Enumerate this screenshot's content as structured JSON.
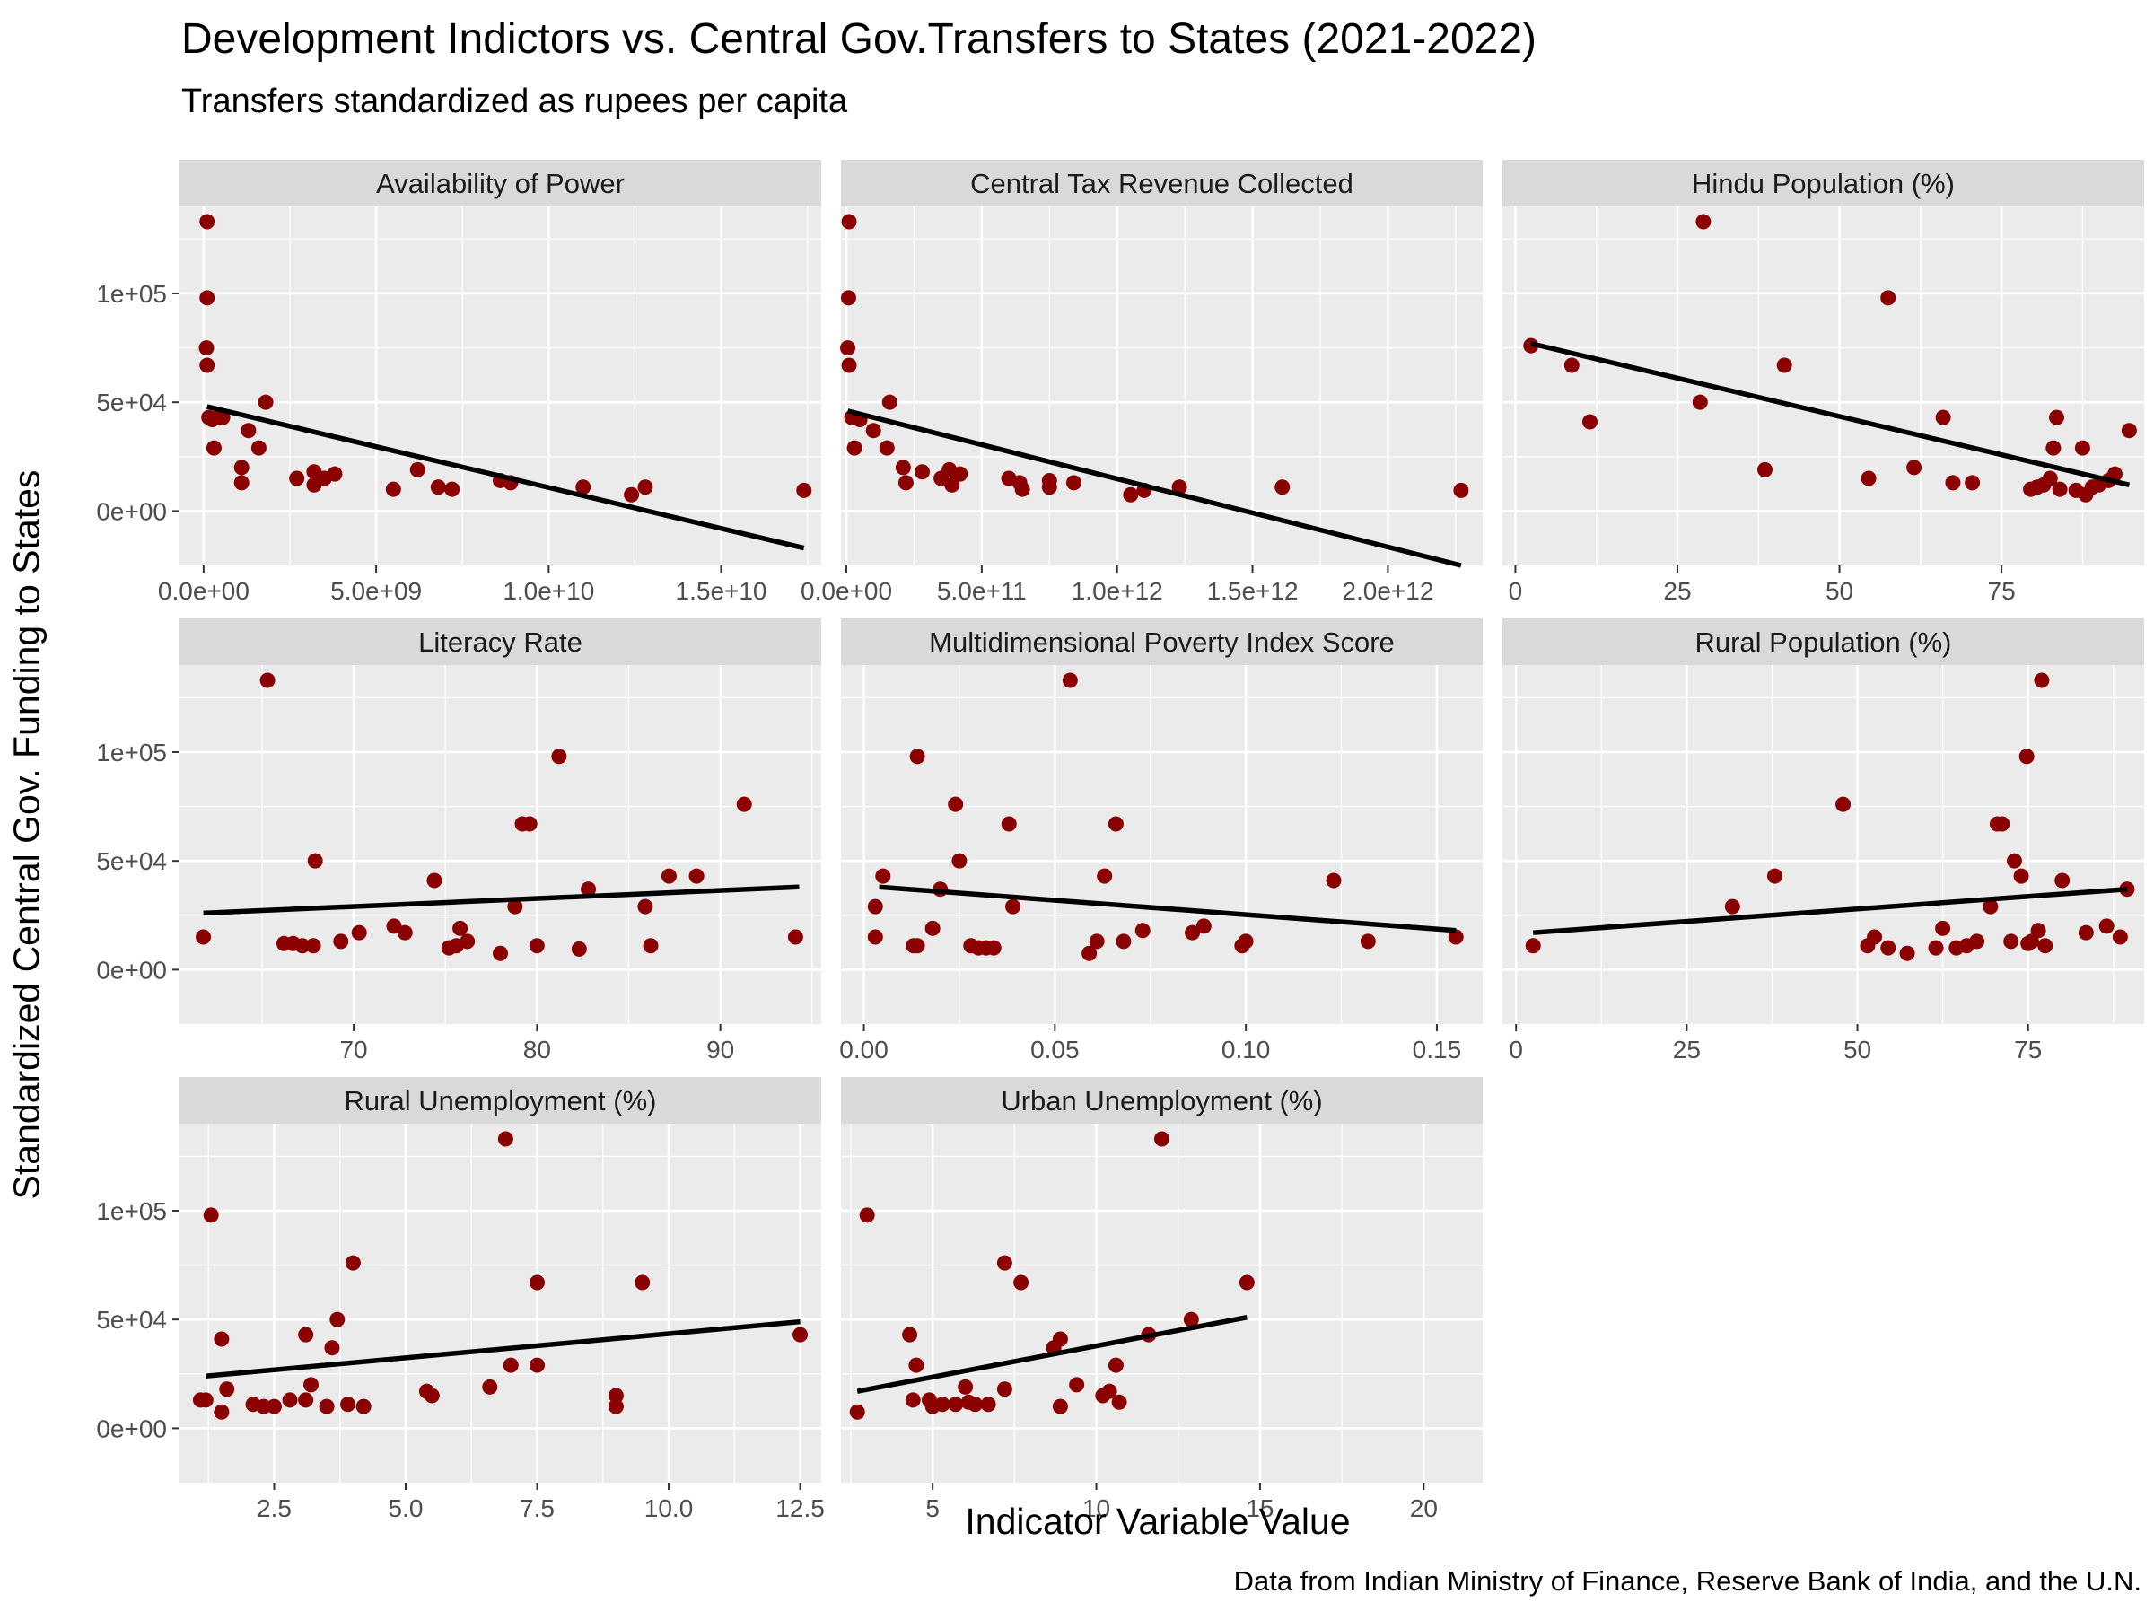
{
  "title": "Development Indictors vs. Central Gov.Transfers to States (2021-2022)",
  "subtitle": "Transfers standardized as rupees per capita",
  "xlabel": "Indicator Variable Value",
  "ylabel": "Standardized Central Gov. Funding to States",
  "caption": "Data from Indian Ministry of Finance, Reserve Bank of India, and the U.N.",
  "colors": {
    "point": "#8B0000",
    "fit_line": "#000000",
    "panel_bg": "#EBEBEB",
    "strip_bg": "#D9D9D9",
    "grid": "#FFFFFF",
    "axis_text": "#4D4D4D"
  },
  "chart_data": {
    "type": "scatter",
    "layout": "facet_wrap",
    "shared_y": true,
    "ylim": [
      -25000,
      140000
    ],
    "y_ticks": [
      0,
      50000,
      100000
    ],
    "y_tick_labels": [
      "0e+00",
      "5e+04",
      "1e+05"
    ],
    "grid": true,
    "panels": [
      {
        "name": "Availability of Power",
        "xlim": [
          -700000000,
          17900000000
        ],
        "x_ticks": [
          0,
          5000000000,
          10000000000,
          15000000000
        ],
        "x_tick_labels": [
          "0.0e+00",
          "5.0e+09",
          "1.0e+10",
          "1.5e+10"
        ],
        "fit": {
          "x": [
            100000000,
            17400000000
          ],
          "y": [
            48000,
            -17000
          ]
        },
        "points": [
          [
            100000000,
            133000
          ],
          [
            100000000,
            98000
          ],
          [
            80000000,
            75000
          ],
          [
            100000000,
            67000
          ],
          [
            150000000,
            43000
          ],
          [
            250000000,
            42000
          ],
          [
            400000000,
            43000
          ],
          [
            550000000,
            43000
          ],
          [
            300000000,
            29000
          ],
          [
            1800000000,
            50000
          ],
          [
            1300000000,
            37000
          ],
          [
            1600000000,
            29000
          ],
          [
            1100000000,
            20000
          ],
          [
            1100000000,
            13000
          ],
          [
            2700000000,
            15000
          ],
          [
            3200000000,
            18000
          ],
          [
            3200000000,
            12000
          ],
          [
            3500000000,
            15000
          ],
          [
            3800000000,
            17000
          ],
          [
            5500000000,
            10000
          ],
          [
            6200000000,
            19000
          ],
          [
            6800000000,
            11000
          ],
          [
            7200000000,
            10000
          ],
          [
            8600000000,
            14000
          ],
          [
            8900000000,
            13000
          ],
          [
            11000000000,
            11000
          ],
          [
            12400000000,
            7500
          ],
          [
            12800000000,
            11000
          ],
          [
            17400000000,
            9500
          ]
        ]
      },
      {
        "name": "Central Tax Revenue Collected",
        "xlim": [
          -20000000000,
          2350000000000
        ],
        "x_ticks": [
          0,
          500000000000,
          1000000000000,
          1500000000000,
          2000000000000
        ],
        "x_tick_labels": [
          "0.0e+00",
          "5.0e+11",
          "1.0e+12",
          "1.5e+12",
          "2.0e+12"
        ],
        "fit": {
          "x": [
            5000000000,
            2270000000000
          ],
          "y": [
            46000,
            -25000
          ]
        },
        "points": [
          [
            10000000000,
            133000
          ],
          [
            8000000000,
            98000
          ],
          [
            5000000000,
            75000
          ],
          [
            10000000000,
            67000
          ],
          [
            20000000000,
            43000
          ],
          [
            50000000000,
            42000
          ],
          [
            100000000000,
            37000
          ],
          [
            160000000000,
            50000
          ],
          [
            30000000000,
            29000
          ],
          [
            150000000000,
            29000
          ],
          [
            210000000000,
            20000
          ],
          [
            220000000000,
            13000
          ],
          [
            280000000000,
            18000
          ],
          [
            350000000000,
            15000
          ],
          [
            380000000000,
            19000
          ],
          [
            390000000000,
            12000
          ],
          [
            420000000000,
            17000
          ],
          [
            600000000000,
            15000
          ],
          [
            640000000000,
            13000
          ],
          [
            650000000000,
            10000
          ],
          [
            750000000000,
            11000
          ],
          [
            750000000000,
            14000
          ],
          [
            840000000000,
            13000
          ],
          [
            1050000000000,
            7500
          ],
          [
            1100000000000,
            9500
          ],
          [
            1230000000000,
            11000
          ],
          [
            1610000000000,
            11000
          ],
          [
            2270000000000,
            9500
          ]
        ]
      },
      {
        "name": "Hindu Population (%)",
        "xlim": [
          -2,
          97
        ],
        "x_ticks": [
          0,
          25,
          50,
          75
        ],
        "x_tick_labels": [
          "0",
          "25",
          "50",
          "75"
        ],
        "fit": {
          "x": [
            2.4,
            94.7
          ],
          "y": [
            77000,
            12000
          ]
        },
        "points": [
          [
            2.4,
            76000
          ],
          [
            8.7,
            67000
          ],
          [
            11.5,
            41000
          ],
          [
            28.5,
            50000
          ],
          [
            29,
            133000
          ],
          [
            38.5,
            19000
          ],
          [
            41.5,
            67000
          ],
          [
            54.5,
            15000
          ],
          [
            57.5,
            98000
          ],
          [
            61.5,
            20000
          ],
          [
            66,
            43000
          ],
          [
            67.5,
            13000
          ],
          [
            70.5,
            13000
          ],
          [
            79.5,
            10000
          ],
          [
            80.5,
            11000
          ],
          [
            81.5,
            12000
          ],
          [
            82.5,
            15000
          ],
          [
            83,
            29000
          ],
          [
            83.5,
            43000
          ],
          [
            84,
            10000
          ],
          [
            86.5,
            9500
          ],
          [
            87.5,
            29000
          ],
          [
            88,
            7500
          ],
          [
            89,
            11000
          ],
          [
            90,
            12000
          ],
          [
            91.5,
            14000
          ],
          [
            92.5,
            17000
          ],
          [
            94.7,
            37000
          ]
        ]
      },
      {
        "name": "Literacy Rate",
        "xlim": [
          60.5,
          95.5
        ],
        "x_ticks": [
          70,
          80,
          90
        ],
        "x_tick_labels": [
          "70",
          "80",
          "90"
        ],
        "fit": {
          "x": [
            61.8,
            94.3
          ],
          "y": [
            26000,
            38000
          ]
        },
        "points": [
          [
            61.8,
            15000
          ],
          [
            65.3,
            133000
          ],
          [
            66.2,
            12000
          ],
          [
            66.7,
            12000
          ],
          [
            67.2,
            11000
          ],
          [
            67.8,
            11000
          ],
          [
            67.9,
            50000
          ],
          [
            69.3,
            13000
          ],
          [
            70.3,
            17000
          ],
          [
            72.2,
            20000
          ],
          [
            72.8,
            17000
          ],
          [
            74.4,
            41000
          ],
          [
            75.2,
            10000
          ],
          [
            75.6,
            11000
          ],
          [
            75.8,
            19000
          ],
          [
            76.2,
            13000
          ],
          [
            78,
            7500
          ],
          [
            78.8,
            29000
          ],
          [
            79.2,
            67000
          ],
          [
            79.6,
            67000
          ],
          [
            80,
            11000
          ],
          [
            81.2,
            98000
          ],
          [
            82.3,
            9500
          ],
          [
            82.8,
            37000
          ],
          [
            85.9,
            29000
          ],
          [
            86.2,
            11000
          ],
          [
            87.2,
            43000
          ],
          [
            88.7,
            43000
          ],
          [
            91.3,
            76000
          ],
          [
            94.1,
            15000
          ]
        ]
      },
      {
        "name": "Multidimensional Poverty Index Score",
        "xlim": [
          -0.006,
          0.162
        ],
        "x_ticks": [
          0,
          0.05,
          0.1,
          0.15
        ],
        "x_tick_labels": [
          "0.00",
          "0.05",
          "0.10",
          "0.15"
        ],
        "fit": {
          "x": [
            0.004,
            0.155
          ],
          "y": [
            38000,
            18000
          ]
        },
        "points": [
          [
            0.003,
            29000
          ],
          [
            0.003,
            15000
          ],
          [
            0.005,
            43000
          ],
          [
            0.013,
            11000
          ],
          [
            0.014,
            11000
          ],
          [
            0.014,
            98000
          ],
          [
            0.018,
            19000
          ],
          [
            0.02,
            37000
          ],
          [
            0.024,
            76000
          ],
          [
            0.025,
            50000
          ],
          [
            0.028,
            11000
          ],
          [
            0.03,
            10000
          ],
          [
            0.032,
            10000
          ],
          [
            0.034,
            10000
          ],
          [
            0.038,
            67000
          ],
          [
            0.039,
            29000
          ],
          [
            0.054,
            133000
          ],
          [
            0.059,
            7500
          ],
          [
            0.061,
            13000
          ],
          [
            0.063,
            43000
          ],
          [
            0.066,
            67000
          ],
          [
            0.068,
            13000
          ],
          [
            0.073,
            18000
          ],
          [
            0.086,
            17000
          ],
          [
            0.089,
            20000
          ],
          [
            0.099,
            11000
          ],
          [
            0.1,
            13000
          ],
          [
            0.123,
            41000
          ],
          [
            0.132,
            13000
          ],
          [
            0.155,
            15000
          ]
        ]
      },
      {
        "name": "Rural Population (%)",
        "xlim": [
          -2,
          92
        ],
        "x_ticks": [
          0,
          25,
          50,
          75
        ],
        "x_tick_labels": [
          "0",
          "25",
          "50",
          "75"
        ],
        "fit": {
          "x": [
            2.5,
            89.5
          ],
          "y": [
            17000,
            37000
          ]
        },
        "points": [
          [
            2.5,
            11000
          ],
          [
            31.7,
            29000
          ],
          [
            37.9,
            43000
          ],
          [
            47.9,
            76000
          ],
          [
            51.5,
            11000
          ],
          [
            52.5,
            15000
          ],
          [
            54.5,
            10000
          ],
          [
            57.3,
            7500
          ],
          [
            61.5,
            10000
          ],
          [
            62.5,
            19000
          ],
          [
            64.5,
            10000
          ],
          [
            66,
            11000
          ],
          [
            67.5,
            13000
          ],
          [
            69.5,
            29000
          ],
          [
            70.5,
            67000
          ],
          [
            71.2,
            67000
          ],
          [
            72.5,
            13000
          ],
          [
            73,
            50000
          ],
          [
            74,
            43000
          ],
          [
            74.8,
            98000
          ],
          [
            75,
            12000
          ],
          [
            75.5,
            13000
          ],
          [
            76.5,
            18000
          ],
          [
            77,
            133000
          ],
          [
            77.5,
            11000
          ],
          [
            80,
            41000
          ],
          [
            83.5,
            17000
          ],
          [
            86.5,
            20000
          ],
          [
            88.5,
            15000
          ],
          [
            89.5,
            37000
          ]
        ]
      },
      {
        "name": "Rural Unemployment (%)",
        "xlim": [
          0.7,
          12.9
        ],
        "x_ticks": [
          2.5,
          5.0,
          7.5,
          10.0,
          12.5
        ],
        "x_tick_labels": [
          "2.5",
          "5.0",
          "7.5",
          "10.0",
          "12.5"
        ],
        "fit": {
          "x": [
            1.2,
            12.5
          ],
          "y": [
            24000,
            49000
          ]
        },
        "points": [
          [
            1.1,
            13000
          ],
          [
            1.3,
            98000
          ],
          [
            1.2,
            13000
          ],
          [
            1.5,
            7500
          ],
          [
            1.5,
            41000
          ],
          [
            1.6,
            18000
          ],
          [
            2.1,
            11000
          ],
          [
            2.3,
            10000
          ],
          [
            2.5,
            10000
          ],
          [
            2.8,
            13000
          ],
          [
            3.1,
            43000
          ],
          [
            3.2,
            20000
          ],
          [
            3.1,
            13000
          ],
          [
            3.5,
            10000
          ],
          [
            3.6,
            37000
          ],
          [
            3.7,
            50000
          ],
          [
            3.9,
            11000
          ],
          [
            4.0,
            76000
          ],
          [
            4.2,
            10000
          ],
          [
            5.4,
            17000
          ],
          [
            5.5,
            15000
          ],
          [
            6.6,
            19000
          ],
          [
            6.9,
            133000
          ],
          [
            7.0,
            29000
          ],
          [
            7.5,
            67000
          ],
          [
            7.5,
            29000
          ],
          [
            9.0,
            15000
          ],
          [
            9.0,
            10000
          ],
          [
            9.5,
            67000
          ],
          [
            12.5,
            43000
          ]
        ]
      },
      {
        "name": "Urban Unemployment (%)",
        "xlim": [
          2.2,
          21.8
        ],
        "x_ticks": [
          5,
          10,
          15,
          20
        ],
        "x_tick_labels": [
          "5",
          "10",
          "15",
          "20"
        ],
        "fit": {
          "x": [
            2.7,
            14.6
          ],
          "y": [
            17000,
            51000
          ]
        },
        "points": [
          [
            2.7,
            7500
          ],
          [
            3.0,
            98000
          ],
          [
            4.3,
            43000
          ],
          [
            4.5,
            29000
          ],
          [
            4.4,
            13000
          ],
          [
            4.9,
            13000
          ],
          [
            5.0,
            10000
          ],
          [
            5.3,
            11000
          ],
          [
            5.7,
            11000
          ],
          [
            6.0,
            19000
          ],
          [
            6.1,
            12000
          ],
          [
            6.3,
            11000
          ],
          [
            6.7,
            11000
          ],
          [
            7.2,
            76000
          ],
          [
            7.2,
            18000
          ],
          [
            7.7,
            67000
          ],
          [
            8.7,
            37000
          ],
          [
            8.9,
            41000
          ],
          [
            8.9,
            10000
          ],
          [
            9.4,
            20000
          ],
          [
            10.2,
            15000
          ],
          [
            10.4,
            17000
          ],
          [
            10.6,
            29000
          ],
          [
            10.7,
            12000
          ],
          [
            11.6,
            43000
          ],
          [
            12.0,
            133000
          ],
          [
            12.9,
            50000
          ],
          [
            14.6,
            67000
          ]
        ]
      }
    ]
  }
}
